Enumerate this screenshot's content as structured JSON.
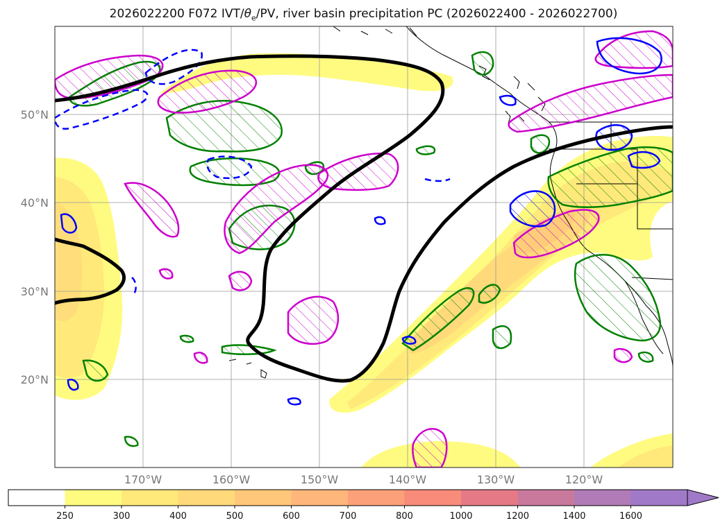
{
  "title": {
    "prefix": "2026022200 F072 IVT/",
    "theta": "θ",
    "theta_sub": "e",
    "suffix": "/PV, river basin precipitation PC (2026022400 - 2026022700)"
  },
  "map": {
    "lon_ticks": [
      "170°W",
      "160°W",
      "150°W",
      "140°W",
      "130°W",
      "120°W"
    ],
    "lat_ticks": [
      "50°N",
      "40°N",
      "30°N",
      "20°N"
    ]
  },
  "colorbar": {
    "ticks": [
      "250",
      "300",
      "400",
      "500",
      "600",
      "700",
      "800",
      "1000",
      "1200",
      "1400",
      "1600"
    ],
    "colors": [
      "#ffffff",
      "#fffb80",
      "#ffe97a",
      "#ffd97a",
      "#ffc779",
      "#ffb67a",
      "#fca07a",
      "#f88b7a",
      "#e57a86",
      "#c97a9c",
      "#b07bb6",
      "#a07ac8"
    ],
    "extend": "max"
  },
  "chart_data": {
    "type": "map",
    "title": "2026022200 F072 IVT/θe/PV, river basin precipitation PC (2026022400 - 2026022700)",
    "region": "North Pacific / western North America",
    "lon_range": [
      -180,
      -110
    ],
    "lat_range": [
      10,
      60
    ],
    "filled_field": "IVT",
    "levels": [
      250,
      300,
      400,
      500,
      600,
      700,
      800,
      1000,
      1200,
      1400,
      1600
    ],
    "contours": [
      {
        "name": "thick black contour",
        "color": "#000000"
      },
      {
        "name": "magenta hatched contours",
        "color": "#cc00cc"
      },
      {
        "name": "green hatched contours",
        "color": "#008000"
      },
      {
        "name": "blue contours (solid/dashed)",
        "color": "#0000ff"
      }
    ]
  }
}
